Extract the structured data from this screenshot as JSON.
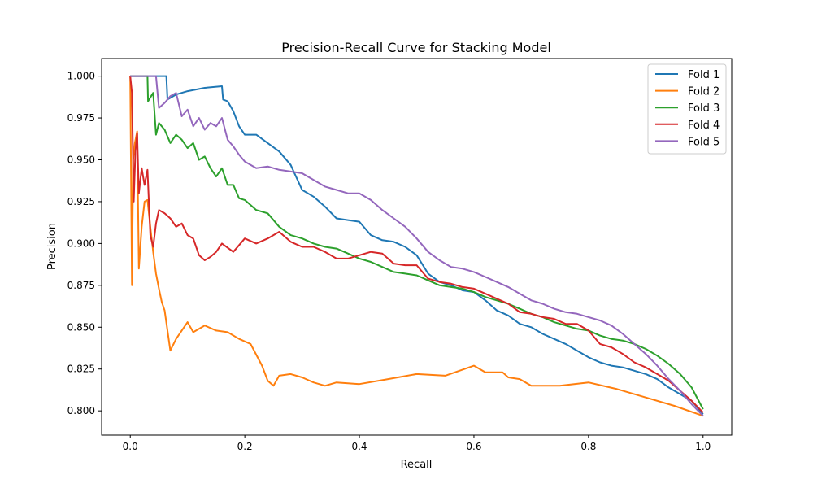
{
  "chart_data": {
    "type": "line",
    "title": "Precision-Recall Curve for Stacking Model",
    "xlabel": "Recall",
    "ylabel": "Precision",
    "xlim": [
      -0.05,
      1.05
    ],
    "ylim": [
      0.7855,
      1.0105
    ],
    "x_ticks": [
      0.0,
      0.2,
      0.4,
      0.6,
      0.8,
      1.0
    ],
    "x_tick_labels": [
      "0.0",
      "0.2",
      "0.4",
      "0.6",
      "0.8",
      "1.0"
    ],
    "y_ticks": [
      0.8,
      0.825,
      0.85,
      0.875,
      0.9,
      0.925,
      0.95,
      0.975,
      1.0
    ],
    "y_tick_labels": [
      "0.800",
      "0.825",
      "0.850",
      "0.875",
      "0.900",
      "0.925",
      "0.950",
      "0.975",
      "1.000"
    ],
    "grid": false,
    "legend_position": "top-right",
    "series": [
      {
        "name": "Fold 1",
        "color": "#1f77b4",
        "x": [
          0.0,
          0.063,
          0.065,
          0.08,
          0.1,
          0.13,
          0.16,
          0.162,
          0.17,
          0.18,
          0.19,
          0.2,
          0.22,
          0.24,
          0.26,
          0.28,
          0.3,
          0.32,
          0.34,
          0.36,
          0.38,
          0.4,
          0.42,
          0.44,
          0.46,
          0.48,
          0.5,
          0.52,
          0.54,
          0.56,
          0.58,
          0.6,
          0.62,
          0.64,
          0.66,
          0.68,
          0.7,
          0.72,
          0.74,
          0.76,
          0.78,
          0.8,
          0.82,
          0.84,
          0.86,
          0.88,
          0.9,
          0.92,
          0.94,
          0.96,
          0.98,
          1.0
        ],
        "y": [
          1.0,
          1.0,
          0.986,
          0.989,
          0.991,
          0.993,
          0.994,
          0.986,
          0.985,
          0.979,
          0.97,
          0.965,
          0.965,
          0.96,
          0.955,
          0.947,
          0.932,
          0.928,
          0.922,
          0.915,
          0.914,
          0.913,
          0.905,
          0.902,
          0.901,
          0.898,
          0.893,
          0.882,
          0.877,
          0.875,
          0.872,
          0.871,
          0.866,
          0.86,
          0.857,
          0.852,
          0.85,
          0.846,
          0.843,
          0.84,
          0.836,
          0.832,
          0.829,
          0.827,
          0.826,
          0.824,
          0.822,
          0.819,
          0.814,
          0.81,
          0.806,
          0.798
        ]
      },
      {
        "name": "Fold 2",
        "color": "#ff7f0e",
        "x": [
          0.0,
          0.003,
          0.005,
          0.008,
          0.012,
          0.015,
          0.02,
          0.025,
          0.03,
          0.035,
          0.04,
          0.045,
          0.05,
          0.055,
          0.06,
          0.07,
          0.08,
          0.09,
          0.1,
          0.11,
          0.13,
          0.15,
          0.17,
          0.19,
          0.21,
          0.23,
          0.24,
          0.25,
          0.26,
          0.28,
          0.3,
          0.32,
          0.34,
          0.36,
          0.4,
          0.45,
          0.5,
          0.55,
          0.6,
          0.62,
          0.65,
          0.66,
          0.68,
          0.7,
          0.75,
          0.8,
          0.85,
          0.9,
          0.95,
          1.0
        ],
        "y": [
          1.0,
          0.875,
          0.95,
          0.96,
          0.967,
          0.885,
          0.91,
          0.925,
          0.926,
          0.91,
          0.895,
          0.882,
          0.873,
          0.865,
          0.86,
          0.836,
          0.843,
          0.848,
          0.853,
          0.847,
          0.851,
          0.848,
          0.847,
          0.843,
          0.84,
          0.827,
          0.818,
          0.815,
          0.821,
          0.822,
          0.82,
          0.817,
          0.815,
          0.817,
          0.816,
          0.819,
          0.822,
          0.821,
          0.827,
          0.823,
          0.823,
          0.82,
          0.819,
          0.815,
          0.815,
          0.817,
          0.813,
          0.808,
          0.803,
          0.797
        ]
      },
      {
        "name": "Fold 3",
        "color": "#2ca02c",
        "x": [
          0.0,
          0.03,
          0.031,
          0.04,
          0.045,
          0.05,
          0.06,
          0.07,
          0.08,
          0.09,
          0.1,
          0.11,
          0.12,
          0.13,
          0.14,
          0.15,
          0.16,
          0.17,
          0.18,
          0.19,
          0.2,
          0.22,
          0.24,
          0.26,
          0.28,
          0.3,
          0.32,
          0.34,
          0.36,
          0.38,
          0.4,
          0.42,
          0.44,
          0.46,
          0.48,
          0.5,
          0.52,
          0.54,
          0.56,
          0.58,
          0.6,
          0.62,
          0.64,
          0.66,
          0.68,
          0.7,
          0.72,
          0.74,
          0.76,
          0.78,
          0.8,
          0.82,
          0.84,
          0.86,
          0.88,
          0.9,
          0.92,
          0.94,
          0.96,
          0.98,
          1.0
        ],
        "y": [
          1.0,
          1.0,
          0.985,
          0.99,
          0.965,
          0.972,
          0.968,
          0.96,
          0.965,
          0.962,
          0.957,
          0.96,
          0.95,
          0.952,
          0.945,
          0.94,
          0.945,
          0.935,
          0.935,
          0.927,
          0.926,
          0.92,
          0.918,
          0.91,
          0.905,
          0.903,
          0.9,
          0.898,
          0.897,
          0.894,
          0.891,
          0.889,
          0.886,
          0.883,
          0.882,
          0.881,
          0.878,
          0.875,
          0.874,
          0.873,
          0.871,
          0.868,
          0.866,
          0.864,
          0.861,
          0.858,
          0.856,
          0.853,
          0.851,
          0.849,
          0.848,
          0.845,
          0.843,
          0.842,
          0.84,
          0.837,
          0.833,
          0.828,
          0.822,
          0.814,
          0.801
        ]
      },
      {
        "name": "Fold 4",
        "color": "#d62728",
        "x": [
          0.0,
          0.003,
          0.006,
          0.009,
          0.012,
          0.015,
          0.02,
          0.025,
          0.03,
          0.035,
          0.04,
          0.045,
          0.05,
          0.06,
          0.07,
          0.08,
          0.09,
          0.1,
          0.11,
          0.12,
          0.13,
          0.14,
          0.15,
          0.16,
          0.18,
          0.2,
          0.22,
          0.24,
          0.26,
          0.28,
          0.3,
          0.32,
          0.34,
          0.36,
          0.38,
          0.4,
          0.42,
          0.44,
          0.46,
          0.48,
          0.5,
          0.52,
          0.54,
          0.56,
          0.58,
          0.6,
          0.62,
          0.64,
          0.66,
          0.68,
          0.7,
          0.72,
          0.74,
          0.76,
          0.78,
          0.8,
          0.82,
          0.84,
          0.86,
          0.88,
          0.9,
          0.92,
          0.94,
          0.96,
          0.98,
          1.0
        ],
        "y": [
          1.0,
          0.99,
          0.925,
          0.955,
          0.966,
          0.93,
          0.945,
          0.935,
          0.944,
          0.905,
          0.898,
          0.912,
          0.92,
          0.918,
          0.915,
          0.91,
          0.912,
          0.905,
          0.903,
          0.893,
          0.89,
          0.892,
          0.895,
          0.9,
          0.895,
          0.903,
          0.9,
          0.903,
          0.907,
          0.901,
          0.898,
          0.898,
          0.895,
          0.891,
          0.891,
          0.893,
          0.895,
          0.894,
          0.888,
          0.887,
          0.887,
          0.879,
          0.877,
          0.876,
          0.874,
          0.873,
          0.87,
          0.867,
          0.864,
          0.859,
          0.858,
          0.856,
          0.855,
          0.852,
          0.852,
          0.848,
          0.84,
          0.838,
          0.834,
          0.829,
          0.826,
          0.822,
          0.818,
          0.812,
          0.806,
          0.799
        ]
      },
      {
        "name": "Fold 5",
        "color": "#9467bd",
        "x": [
          0.0,
          0.045,
          0.05,
          0.06,
          0.07,
          0.08,
          0.09,
          0.1,
          0.11,
          0.12,
          0.13,
          0.14,
          0.15,
          0.16,
          0.17,
          0.18,
          0.19,
          0.2,
          0.22,
          0.24,
          0.26,
          0.28,
          0.3,
          0.32,
          0.34,
          0.36,
          0.38,
          0.4,
          0.42,
          0.44,
          0.46,
          0.48,
          0.5,
          0.52,
          0.54,
          0.56,
          0.58,
          0.6,
          0.62,
          0.64,
          0.66,
          0.68,
          0.7,
          0.72,
          0.74,
          0.76,
          0.78,
          0.8,
          0.82,
          0.84,
          0.86,
          0.88,
          0.9,
          0.92,
          0.94,
          0.96,
          0.98,
          1.0
        ],
        "y": [
          1.0,
          1.0,
          0.981,
          0.984,
          0.988,
          0.99,
          0.976,
          0.98,
          0.97,
          0.975,
          0.968,
          0.972,
          0.97,
          0.975,
          0.962,
          0.958,
          0.953,
          0.949,
          0.945,
          0.946,
          0.944,
          0.943,
          0.942,
          0.938,
          0.934,
          0.932,
          0.93,
          0.93,
          0.926,
          0.92,
          0.915,
          0.91,
          0.903,
          0.895,
          0.89,
          0.886,
          0.885,
          0.883,
          0.88,
          0.877,
          0.874,
          0.87,
          0.866,
          0.864,
          0.861,
          0.859,
          0.858,
          0.856,
          0.854,
          0.851,
          0.846,
          0.84,
          0.834,
          0.827,
          0.819,
          0.812,
          0.804,
          0.797
        ]
      }
    ]
  }
}
